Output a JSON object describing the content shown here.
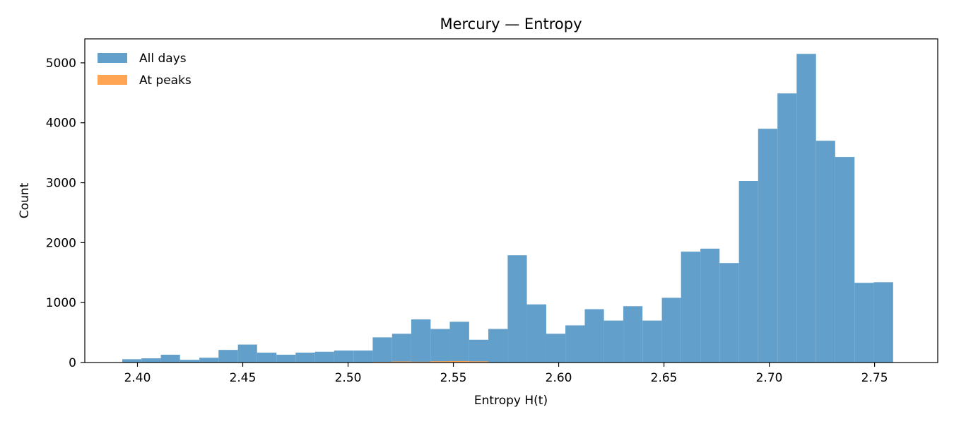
{
  "chart_data": {
    "type": "bar",
    "title": "Mercury — Entropy",
    "xlabel": "Entropy H(t)",
    "ylabel": "Count",
    "xlim": [
      2.375,
      2.78
    ],
    "ylim": [
      0,
      5400
    ],
    "xticks": [
      "2.40",
      "2.45",
      "2.50",
      "2.55",
      "2.60",
      "2.65",
      "2.70",
      "2.75"
    ],
    "yticks": [
      "0",
      "1000",
      "2000",
      "3000",
      "4000",
      "5000"
    ],
    "grid": false,
    "legend_position": "top-left",
    "bin_edges": [
      2.3928,
      2.4019,
      2.4111,
      2.4202,
      2.4294,
      2.4385,
      2.4477,
      2.4568,
      2.466,
      2.4751,
      2.4843,
      2.4934,
      2.5026,
      2.5117,
      2.5209,
      2.53,
      2.5392,
      2.5483,
      2.5575,
      2.5666,
      2.5758,
      2.5849,
      2.5941,
      2.6032,
      2.6124,
      2.6215,
      2.6307,
      2.6398,
      2.649,
      2.6581,
      2.6673,
      2.6764,
      2.6856,
      2.6947,
      2.7039,
      2.713,
      2.7222,
      2.7313,
      2.7405,
      2.7496,
      2.7588
    ],
    "series": [
      {
        "name": "All days",
        "color": "#629fca",
        "values": [
          55,
          70,
          130,
          45,
          80,
          210,
          300,
          165,
          130,
          165,
          180,
          200,
          200,
          420,
          480,
          720,
          560,
          680,
          380,
          560,
          1790,
          970,
          480,
          620,
          890,
          700,
          940,
          700,
          1080,
          1850,
          1900,
          1660,
          3030,
          3900,
          4490,
          5150,
          3700,
          3430,
          1330,
          1340
        ]
      },
      {
        "name": "At peaks",
        "color": "#ffa554",
        "values": [
          0,
          0,
          0,
          0,
          0,
          0,
          0,
          0,
          0,
          0,
          0,
          0,
          0,
          12,
          18,
          14,
          22,
          25,
          20,
          0,
          0,
          0,
          0,
          0,
          0,
          0,
          0,
          0,
          0,
          0,
          0,
          0,
          0,
          0,
          0,
          0,
          0,
          0,
          0,
          0
        ]
      }
    ]
  }
}
